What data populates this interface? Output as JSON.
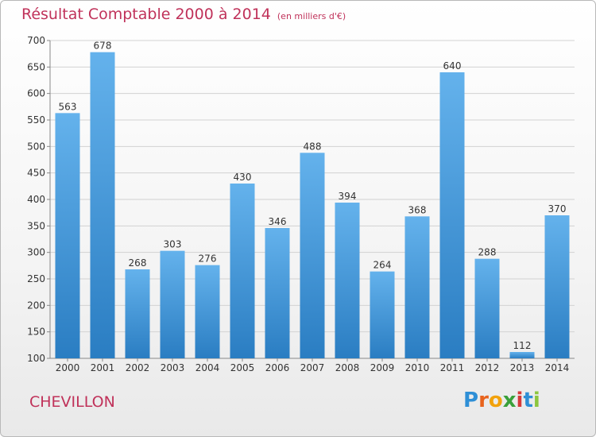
{
  "title": "Résultat Comptable 2000 à 2014",
  "unit_note": "(en milliers d'€)",
  "commune": "CHEVILLON",
  "logo": {
    "letters": [
      "P",
      "r",
      "o",
      "x",
      "i",
      "t",
      "i"
    ],
    "colors": [
      "#2e8fd6",
      "#e8631d",
      "#f2a20c",
      "#3aa03a",
      "#d63a3a",
      "#2e8fd6",
      "#8cc63f"
    ]
  },
  "colors": {
    "bar_top": "#64b2ec",
    "bar_bottom": "#2a7dc2",
    "grid": "#d2d2d2",
    "title": "#c0325a"
  },
  "chart_data": {
    "type": "bar",
    "categories": [
      "2000",
      "2001",
      "2002",
      "2003",
      "2004",
      "2005",
      "2006",
      "2007",
      "2008",
      "2009",
      "2010",
      "2011",
      "2012",
      "2013",
      "2014"
    ],
    "values": [
      563,
      678,
      268,
      303,
      276,
      430,
      346,
      488,
      394,
      264,
      368,
      640,
      288,
      112,
      370
    ],
    "ylim": [
      100,
      700
    ],
    "yticks": [
      100,
      150,
      200,
      250,
      300,
      350,
      400,
      450,
      500,
      550,
      600,
      650,
      700
    ],
    "grid": true
  }
}
